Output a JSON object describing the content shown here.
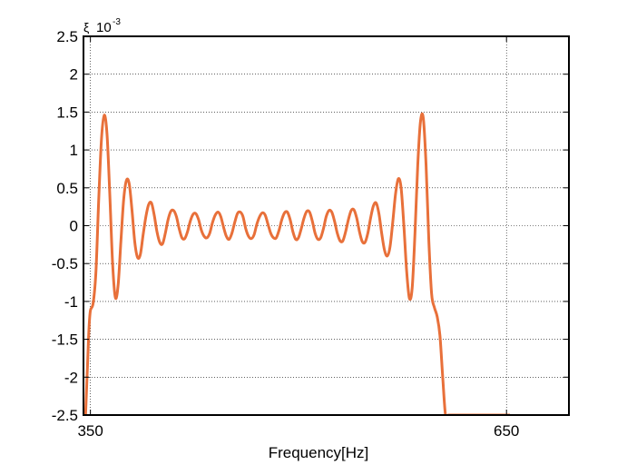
{
  "chart_data": {
    "type": "line",
    "title": "",
    "xlabel": "Frequency[Hz]",
    "ylabel": "ξ",
    "y_exponent_label": "10",
    "y_exponent_power": "-3",
    "xlim": [
      345,
      695
    ],
    "ylim": [
      -2.5,
      2.5
    ],
    "x_ticks": [
      350,
      650
    ],
    "x_tick_labels": [
      "350",
      "650"
    ],
    "y_ticks": [
      -2.5,
      -2,
      -1.5,
      -1,
      -0.5,
      0,
      0.5,
      1,
      1.5,
      2,
      2.5
    ],
    "y_tick_labels": [
      "-2.5",
      "-2",
      "-1.5",
      "-1",
      "-0.5",
      "0",
      "0.5",
      "1",
      "1.5",
      "2",
      "2.5"
    ],
    "grid": true,
    "series": [
      {
        "color": "#e8703a",
        "x": [
          346.5,
          348,
          349,
          350,
          352,
          354,
          356,
          358,
          360,
          362,
          364,
          366,
          368,
          370,
          372,
          374,
          376,
          378,
          380,
          382,
          384,
          386,
          388,
          390,
          392,
          394,
          396,
          398,
          400,
          402,
          404,
          406,
          408,
          410,
          412,
          414,
          416,
          418,
          420,
          422,
          424,
          426,
          428,
          430,
          432,
          434,
          436,
          438,
          440,
          442,
          444,
          446,
          448,
          450,
          452,
          454,
          456,
          458,
          460,
          462,
          464,
          466,
          468,
          470,
          472,
          474,
          476,
          478,
          480,
          482,
          484,
          486,
          488,
          490,
          492,
          494,
          496,
          498,
          500,
          502,
          504,
          506,
          508,
          510,
          512,
          514,
          516,
          518,
          520,
          522,
          524,
          526,
          528,
          530,
          532,
          534,
          536,
          538,
          540,
          542,
          544,
          546,
          548,
          550,
          552,
          554,
          556,
          558,
          560,
          562,
          564,
          566,
          568,
          570,
          572,
          574,
          576,
          578,
          580,
          582,
          584,
          586,
          588,
          590,
          592,
          594,
          596,
          598,
          600,
          602,
          604,
          606,
          608,
          610,
          612,
          614,
          616,
          618,
          620,
          622,
          624,
          626,
          628,
          630,
          632,
          634,
          636,
          638,
          640,
          642,
          644,
          646,
          648,
          650,
          651.5,
          652.5
        ],
        "y": [
          -2.5,
          -1.8,
          -1.35,
          -1.12,
          -1.02,
          -0.6,
          0.35,
          1.15,
          1.46,
          1.2,
          0.4,
          -0.5,
          -0.95,
          -0.78,
          -0.2,
          0.35,
          0.6,
          0.55,
          0.2,
          -0.22,
          -0.42,
          -0.38,
          -0.12,
          0.12,
          0.28,
          0.3,
          0.14,
          -0.08,
          -0.22,
          -0.24,
          -0.1,
          0.08,
          0.19,
          0.2,
          0.12,
          -0.04,
          -0.16,
          -0.17,
          -0.08,
          0.06,
          0.15,
          0.16,
          0.08,
          -0.06,
          -0.14,
          -0.16,
          -0.1,
          0.04,
          0.14,
          0.18,
          0.12,
          -0.02,
          -0.14,
          -0.18,
          -0.1,
          0.04,
          0.16,
          0.18,
          0.12,
          -0.04,
          -0.14,
          -0.17,
          -0.12,
          0.02,
          0.12,
          0.17,
          0.14,
          0.02,
          -0.1,
          -0.16,
          -0.16,
          -0.06,
          0.08,
          0.17,
          0.18,
          0.08,
          -0.08,
          -0.18,
          -0.16,
          -0.04,
          0.1,
          0.19,
          0.18,
          0.06,
          -0.1,
          -0.18,
          -0.16,
          -0.04,
          0.12,
          0.2,
          0.18,
          0.06,
          -0.1,
          -0.2,
          -0.2,
          -0.08,
          0.08,
          0.2,
          0.21,
          0.1,
          -0.08,
          -0.21,
          -0.22,
          -0.1,
          0.1,
          0.26,
          0.3,
          0.16,
          -0.1,
          -0.32,
          -0.4,
          -0.28,
          0.05,
          0.42,
          0.62,
          0.5,
          0.0,
          -0.6,
          -0.96,
          -0.82,
          -0.1,
          0.8,
          1.38,
          1.42,
          0.8,
          -0.2,
          -0.9,
          -1.08,
          -1.2,
          -1.45,
          -2.0,
          -2.5,
          -2.5,
          -2.5,
          -2.5,
          -2.5,
          -2.5,
          -2.5,
          -2.5,
          -2.5,
          -2.5,
          -2.5,
          -2.5,
          -2.5,
          -2.5,
          -2.5,
          -2.5,
          -2.5,
          -2.5,
          -2.5,
          -2.5,
          -2.5,
          -2.5,
          -2.5,
          -2.5,
          -2.5
        ]
      }
    ]
  }
}
